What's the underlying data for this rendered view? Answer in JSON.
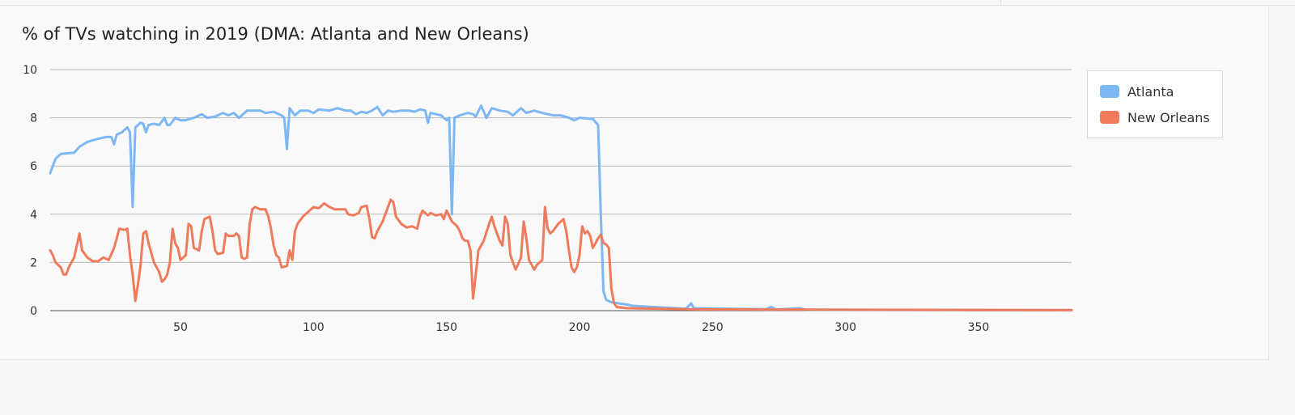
{
  "chart_data": {
    "type": "line",
    "title": "% of TVs watching in 2019 (DMA: Atlanta and New Orleans)",
    "xlabel": "",
    "ylabel": "",
    "xlim": [
      1,
      385
    ],
    "ylim": [
      0,
      10
    ],
    "yticks": [
      "0",
      "2",
      "4",
      "6",
      "8",
      "10"
    ],
    "xticks": [
      "50",
      "100",
      "150",
      "200",
      "250",
      "300",
      "350"
    ],
    "grid": true,
    "legend_position": "top-right",
    "series": [
      {
        "name": "Atlanta",
        "color": "#7db7f4",
        "points": [
          [
            1,
            5.7
          ],
          [
            3,
            6.3
          ],
          [
            5,
            6.5
          ],
          [
            10,
            6.55
          ],
          [
            12,
            6.8
          ],
          [
            15,
            7.0
          ],
          [
            18,
            7.1
          ],
          [
            22,
            7.2
          ],
          [
            24,
            7.2
          ],
          [
            25,
            6.9
          ],
          [
            26,
            7.3
          ],
          [
            28,
            7.4
          ],
          [
            29,
            7.5
          ],
          [
            30,
            7.6
          ],
          [
            31,
            7.4
          ],
          [
            32,
            4.3
          ],
          [
            33,
            7.6
          ],
          [
            35,
            7.8
          ],
          [
            36,
            7.75
          ],
          [
            37,
            7.4
          ],
          [
            38,
            7.7
          ],
          [
            40,
            7.75
          ],
          [
            42,
            7.7
          ],
          [
            44,
            8.0
          ],
          [
            45,
            7.7
          ],
          [
            46,
            7.7
          ],
          [
            48,
            8.0
          ],
          [
            50,
            7.9
          ],
          [
            52,
            7.9
          ],
          [
            55,
            8.0
          ],
          [
            58,
            8.15
          ],
          [
            60,
            8.0
          ],
          [
            63,
            8.05
          ],
          [
            66,
            8.2
          ],
          [
            68,
            8.1
          ],
          [
            70,
            8.2
          ],
          [
            72,
            8.0
          ],
          [
            73,
            8.1
          ],
          [
            75,
            8.3
          ],
          [
            80,
            8.3
          ],
          [
            82,
            8.2
          ],
          [
            85,
            8.25
          ],
          [
            88,
            8.1
          ],
          [
            89,
            8.0
          ],
          [
            90,
            6.7
          ],
          [
            91,
            8.4
          ],
          [
            93,
            8.1
          ],
          [
            95,
            8.3
          ],
          [
            98,
            8.3
          ],
          [
            100,
            8.2
          ],
          [
            102,
            8.35
          ],
          [
            106,
            8.3
          ],
          [
            109,
            8.4
          ],
          [
            112,
            8.3
          ],
          [
            114,
            8.3
          ],
          [
            116,
            8.15
          ],
          [
            118,
            8.25
          ],
          [
            120,
            8.2
          ],
          [
            122,
            8.3
          ],
          [
            124,
            8.45
          ],
          [
            126,
            8.1
          ],
          [
            128,
            8.3
          ],
          [
            130,
            8.25
          ],
          [
            133,
            8.3
          ],
          [
            136,
            8.3
          ],
          [
            138,
            8.25
          ],
          [
            140,
            8.35
          ],
          [
            142,
            8.3
          ],
          [
            143,
            7.8
          ],
          [
            144,
            8.2
          ],
          [
            146,
            8.15
          ],
          [
            148,
            8.1
          ],
          [
            149,
            8.0
          ],
          [
            150,
            7.9
          ],
          [
            151,
            8.0
          ],
          [
            152,
            4.0
          ],
          [
            153,
            8.0
          ],
          [
            155,
            8.1
          ],
          [
            158,
            8.2
          ],
          [
            160,
            8.15
          ],
          [
            161,
            8.05
          ],
          [
            163,
            8.5
          ],
          [
            165,
            8.0
          ],
          [
            167,
            8.4
          ],
          [
            170,
            8.3
          ],
          [
            173,
            8.25
          ],
          [
            175,
            8.1
          ],
          [
            178,
            8.4
          ],
          [
            180,
            8.2
          ],
          [
            183,
            8.3
          ],
          [
            186,
            8.2
          ],
          [
            190,
            8.1
          ],
          [
            193,
            8.1
          ],
          [
            196,
            8.0
          ],
          [
            198,
            7.9
          ],
          [
            200,
            8.0
          ],
          [
            205,
            7.95
          ],
          [
            207,
            7.7
          ],
          [
            208,
            4.0
          ],
          [
            209,
            0.8
          ],
          [
            210,
            0.45
          ],
          [
            212,
            0.35
          ],
          [
            218,
            0.25
          ],
          [
            220,
            0.2
          ],
          [
            228,
            0.15
          ],
          [
            240,
            0.08
          ],
          [
            242,
            0.3
          ],
          [
            243,
            0.1
          ],
          [
            255,
            0.08
          ],
          [
            270,
            0.06
          ],
          [
            272,
            0.15
          ],
          [
            274,
            0.05
          ],
          [
            283,
            0.1
          ],
          [
            285,
            0.03
          ],
          [
            300,
            0.03
          ],
          [
            385,
            0.02
          ]
        ]
      },
      {
        "name": "New Orleans",
        "color": "#ef7b5c",
        "points": [
          [
            1,
            2.5
          ],
          [
            2,
            2.3
          ],
          [
            3,
            2.0
          ],
          [
            5,
            1.8
          ],
          [
            6,
            1.5
          ],
          [
            7,
            1.5
          ],
          [
            8,
            1.8
          ],
          [
            10,
            2.2
          ],
          [
            12,
            3.2
          ],
          [
            13,
            2.5
          ],
          [
            15,
            2.2
          ],
          [
            17,
            2.05
          ],
          [
            19,
            2.05
          ],
          [
            21,
            2.2
          ],
          [
            23,
            2.1
          ],
          [
            25,
            2.6
          ],
          [
            26,
            3.0
          ],
          [
            27,
            3.4
          ],
          [
            29,
            3.35
          ],
          [
            30,
            3.4
          ],
          [
            31,
            2.3
          ],
          [
            32,
            1.5
          ],
          [
            33,
            0.4
          ],
          [
            34,
            1.1
          ],
          [
            35,
            1.9
          ],
          [
            36,
            3.2
          ],
          [
            37,
            3.3
          ],
          [
            38,
            2.8
          ],
          [
            40,
            2.0
          ],
          [
            42,
            1.6
          ],
          [
            43,
            1.2
          ],
          [
            44,
            1.3
          ],
          [
            45,
            1.5
          ],
          [
            46,
            2.0
          ],
          [
            47,
            3.4
          ],
          [
            48,
            2.8
          ],
          [
            49,
            2.6
          ],
          [
            50,
            2.1
          ],
          [
            52,
            2.3
          ],
          [
            53,
            3.6
          ],
          [
            54,
            3.5
          ],
          [
            55,
            2.6
          ],
          [
            57,
            2.5
          ],
          [
            58,
            3.3
          ],
          [
            59,
            3.8
          ],
          [
            61,
            3.9
          ],
          [
            62,
            3.3
          ],
          [
            63,
            2.5
          ],
          [
            64,
            2.35
          ],
          [
            66,
            2.4
          ],
          [
            67,
            3.2
          ],
          [
            68,
            3.1
          ],
          [
            70,
            3.1
          ],
          [
            71,
            3.2
          ],
          [
            72,
            3.1
          ],
          [
            73,
            2.2
          ],
          [
            74,
            2.15
          ],
          [
            75,
            2.2
          ],
          [
            76,
            3.6
          ],
          [
            77,
            4.2
          ],
          [
            78,
            4.3
          ],
          [
            80,
            4.2
          ],
          [
            82,
            4.2
          ],
          [
            83,
            3.9
          ],
          [
            84,
            3.4
          ],
          [
            85,
            2.7
          ],
          [
            86,
            2.3
          ],
          [
            87,
            2.2
          ],
          [
            88,
            1.8
          ],
          [
            90,
            1.85
          ],
          [
            91,
            2.5
          ],
          [
            92,
            2.1
          ],
          [
            93,
            3.3
          ],
          [
            94,
            3.6
          ],
          [
            96,
            3.9
          ],
          [
            98,
            4.1
          ],
          [
            100,
            4.3
          ],
          [
            102,
            4.25
          ],
          [
            104,
            4.45
          ],
          [
            106,
            4.3
          ],
          [
            108,
            4.2
          ],
          [
            110,
            4.2
          ],
          [
            112,
            4.2
          ],
          [
            113,
            4.0
          ],
          [
            115,
            3.95
          ],
          [
            117,
            4.05
          ],
          [
            118,
            4.3
          ],
          [
            120,
            4.35
          ],
          [
            121,
            3.8
          ],
          [
            122,
            3.05
          ],
          [
            123,
            3.0
          ],
          [
            124,
            3.3
          ],
          [
            126,
            3.7
          ],
          [
            128,
            4.3
          ],
          [
            129,
            4.6
          ],
          [
            130,
            4.5
          ],
          [
            131,
            3.9
          ],
          [
            133,
            3.6
          ],
          [
            135,
            3.45
          ],
          [
            137,
            3.5
          ],
          [
            139,
            3.4
          ],
          [
            140,
            3.9
          ],
          [
            141,
            4.15
          ],
          [
            143,
            3.95
          ],
          [
            144,
            4.05
          ],
          [
            146,
            3.95
          ],
          [
            148,
            4.0
          ],
          [
            149,
            3.8
          ],
          [
            150,
            4.15
          ],
          [
            152,
            3.7
          ],
          [
            154,
            3.5
          ],
          [
            155,
            3.3
          ],
          [
            156,
            3.0
          ],
          [
            157,
            2.9
          ],
          [
            158,
            2.9
          ],
          [
            159,
            2.5
          ],
          [
            160,
            0.5
          ],
          [
            161,
            1.5
          ],
          [
            162,
            2.5
          ],
          [
            164,
            2.9
          ],
          [
            166,
            3.6
          ],
          [
            167,
            3.9
          ],
          [
            168,
            3.5
          ],
          [
            170,
            2.9
          ],
          [
            171,
            2.7
          ],
          [
            172,
            3.9
          ],
          [
            173,
            3.6
          ],
          [
            174,
            2.3
          ],
          [
            175,
            2.0
          ],
          [
            176,
            1.7
          ],
          [
            178,
            2.2
          ],
          [
            179,
            3.7
          ],
          [
            180,
            3.0
          ],
          [
            181,
            2.1
          ],
          [
            183,
            1.7
          ],
          [
            184,
            1.9
          ],
          [
            186,
            2.1
          ],
          [
            187,
            4.3
          ],
          [
            188,
            3.4
          ],
          [
            189,
            3.2
          ],
          [
            190,
            3.3
          ],
          [
            192,
            3.6
          ],
          [
            194,
            3.8
          ],
          [
            195,
            3.3
          ],
          [
            196,
            2.5
          ],
          [
            197,
            1.8
          ],
          [
            198,
            1.6
          ],
          [
            199,
            1.8
          ],
          [
            200,
            2.3
          ],
          [
            201,
            3.5
          ],
          [
            202,
            3.2
          ],
          [
            203,
            3.3
          ],
          [
            204,
            3.1
          ],
          [
            205,
            2.6
          ],
          [
            206,
            2.8
          ],
          [
            207,
            3.0
          ],
          [
            208,
            3.15
          ],
          [
            209,
            2.8
          ],
          [
            210,
            2.75
          ],
          [
            211,
            2.6
          ],
          [
            212,
            0.9
          ],
          [
            213,
            0.3
          ],
          [
            214,
            0.15
          ],
          [
            218,
            0.1
          ],
          [
            230,
            0.08
          ],
          [
            245,
            0.05
          ],
          [
            385,
            0.02
          ]
        ]
      }
    ]
  }
}
